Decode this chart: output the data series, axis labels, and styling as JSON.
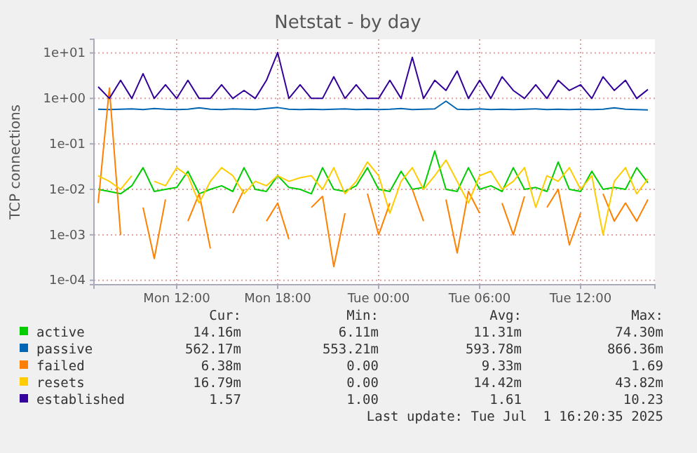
{
  "chart_data": {
    "type": "line",
    "title": "Netstat - by day",
    "ylabel": "TCP connections",
    "log": true,
    "grid": true,
    "legend": "bottom",
    "marker": "none",
    "line_style": "solid",
    "ylim": [
      8e-05,
      20
    ],
    "yticks": [
      {
        "value": 0.0001,
        "label": "1e-04"
      },
      {
        "value": 0.001,
        "label": "1e-03"
      },
      {
        "value": 0.01,
        "label": "1e-02"
      },
      {
        "value": 0.1,
        "label": "1e-01"
      },
      {
        "value": 1,
        "label": "1e+00"
      },
      {
        "value": 10,
        "label": "1e+01"
      }
    ],
    "xlim": [
      "2025-06-30T07:05",
      "2025-07-01T16:25"
    ],
    "xticks": [
      {
        "value": "2025-06-30T12:00",
        "label": "Mon 12:00"
      },
      {
        "value": "2025-06-30T18:00",
        "label": "Mon 18:00"
      },
      {
        "value": "2025-07-01T00:00",
        "label": "Tue 00:00"
      },
      {
        "value": "2025-07-01T06:00",
        "label": "Tue 06:00"
      },
      {
        "value": "2025-07-01T12:00",
        "label": "Tue 12:00"
      }
    ],
    "x": [
      "2025-06-30T07:20",
      "2025-06-30T08:00",
      "2025-06-30T08:40",
      "2025-06-30T09:20",
      "2025-06-30T10:00",
      "2025-06-30T10:40",
      "2025-06-30T11:20",
      "2025-06-30T12:00",
      "2025-06-30T12:40",
      "2025-06-30T13:20",
      "2025-06-30T14:00",
      "2025-06-30T14:40",
      "2025-06-30T15:20",
      "2025-06-30T16:00",
      "2025-06-30T16:40",
      "2025-06-30T17:20",
      "2025-06-30T18:00",
      "2025-06-30T18:40",
      "2025-06-30T19:20",
      "2025-06-30T20:00",
      "2025-06-30T20:40",
      "2025-06-30T21:20",
      "2025-06-30T22:00",
      "2025-06-30T22:40",
      "2025-06-30T23:20",
      "2025-07-01T00:00",
      "2025-07-01T00:40",
      "2025-07-01T01:20",
      "2025-07-01T02:00",
      "2025-07-01T02:40",
      "2025-07-01T03:20",
      "2025-07-01T04:00",
      "2025-07-01T04:40",
      "2025-07-01T05:20",
      "2025-07-01T06:00",
      "2025-07-01T06:40",
      "2025-07-01T07:20",
      "2025-07-01T08:00",
      "2025-07-01T08:40",
      "2025-07-01T09:20",
      "2025-07-01T10:00",
      "2025-07-01T10:40",
      "2025-07-01T11:20",
      "2025-07-01T12:00",
      "2025-07-01T12:40",
      "2025-07-01T13:20",
      "2025-07-01T14:00",
      "2025-07-01T14:40",
      "2025-07-01T15:20",
      "2025-07-01T16:00"
    ],
    "series": [
      {
        "name": "active",
        "color": "#00cc00",
        "values": [
          0.01,
          0.009,
          0.008,
          0.012,
          0.03,
          0.009,
          0.01,
          0.011,
          0.025,
          0.008,
          0.01,
          0.012,
          0.009,
          0.03,
          0.01,
          0.009,
          0.02,
          0.011,
          0.01,
          0.008,
          0.03,
          0.01,
          0.009,
          0.012,
          0.03,
          0.01,
          0.009,
          0.025,
          0.01,
          0.011,
          0.07,
          0.01,
          0.009,
          0.03,
          0.01,
          0.012,
          0.009,
          0.03,
          0.01,
          0.011,
          0.009,
          0.04,
          0.01,
          0.009,
          0.025,
          0.01,
          0.011,
          0.01,
          0.03,
          0.014
        ]
      },
      {
        "name": "passive",
        "color": "#0066b3",
        "values": [
          0.58,
          0.57,
          0.58,
          0.59,
          0.57,
          0.6,
          0.58,
          0.57,
          0.58,
          0.62,
          0.58,
          0.57,
          0.59,
          0.58,
          0.57,
          0.6,
          0.63,
          0.58,
          0.57,
          0.58,
          0.57,
          0.58,
          0.59,
          0.57,
          0.58,
          0.57,
          0.58,
          0.6,
          0.57,
          0.58,
          0.59,
          0.87,
          0.58,
          0.57,
          0.59,
          0.57,
          0.58,
          0.57,
          0.58,
          0.59,
          0.57,
          0.58,
          0.57,
          0.58,
          0.57,
          0.58,
          0.62,
          0.58,
          0.57,
          0.56
        ]
      },
      {
        "name": "failed",
        "color": "#ff8000",
        "values": [
          0.005,
          1.69,
          0.001,
          null,
          0.004,
          0.0003,
          0.006,
          null,
          0.002,
          0.008,
          0.0005,
          null,
          0.003,
          0.01,
          null,
          0.002,
          0.005,
          0.0008,
          null,
          0.004,
          0.007,
          0.0002,
          0.003,
          null,
          0.008,
          0.001,
          0.005,
          null,
          0.01,
          0.002,
          null,
          0.006,
          0.0004,
          0.009,
          0.003,
          null,
          0.005,
          0.001,
          0.007,
          null,
          0.004,
          0.01,
          0.0006,
          0.003,
          null,
          0.008,
          0.002,
          0.005,
          0.002,
          0.006
        ]
      },
      {
        "name": "resets",
        "color": "#ffcc00",
        "values": [
          0.02,
          0.015,
          0.01,
          0.02,
          null,
          0.015,
          0.012,
          0.03,
          0.02,
          0.005,
          0.015,
          0.03,
          0.02,
          0.008,
          0.015,
          0.012,
          0.02,
          0.015,
          0.018,
          0.02,
          0.01,
          0.03,
          0.008,
          0.015,
          0.04,
          0.02,
          0.003,
          0.015,
          0.03,
          0.01,
          0.02,
          0.044,
          0.015,
          0.005,
          0.02,
          0.025,
          0.01,
          0.015,
          0.03,
          0.004,
          0.02,
          0.015,
          0.03,
          0.01,
          0.02,
          0.001,
          0.015,
          0.03,
          0.008,
          0.017
        ]
      },
      {
        "name": "established",
        "color": "#330099",
        "values": [
          1.8,
          1,
          2.5,
          1,
          3.5,
          1,
          2,
          1,
          2.5,
          1,
          1,
          2,
          1,
          1.5,
          1,
          2.5,
          10.23,
          1,
          2,
          1,
          1,
          3,
          1,
          2,
          1,
          1,
          2.5,
          1,
          8,
          1,
          2.5,
          1.5,
          4,
          1,
          2.5,
          1,
          3,
          1.5,
          1,
          2,
          1,
          2.5,
          1.5,
          2,
          1,
          3,
          1.5,
          2.5,
          1,
          1.57
        ]
      }
    ],
    "annotations": [
      "Cur:",
      "Min:",
      "Avg:",
      "Max:",
      "14.16m",
      "6.11m",
      "11.31m",
      "74.30m",
      "562.17m",
      "553.21m",
      "593.78m",
      "866.36m",
      "6.38m",
      "0.00",
      "9.33m",
      "1.69",
      "16.79m",
      "0.00",
      "14.42m",
      "43.82m",
      "1.57",
      "1.00",
      "1.61",
      "10.23",
      "Last update: Tue Jul  1 16:20:35 2025"
    ]
  }
}
